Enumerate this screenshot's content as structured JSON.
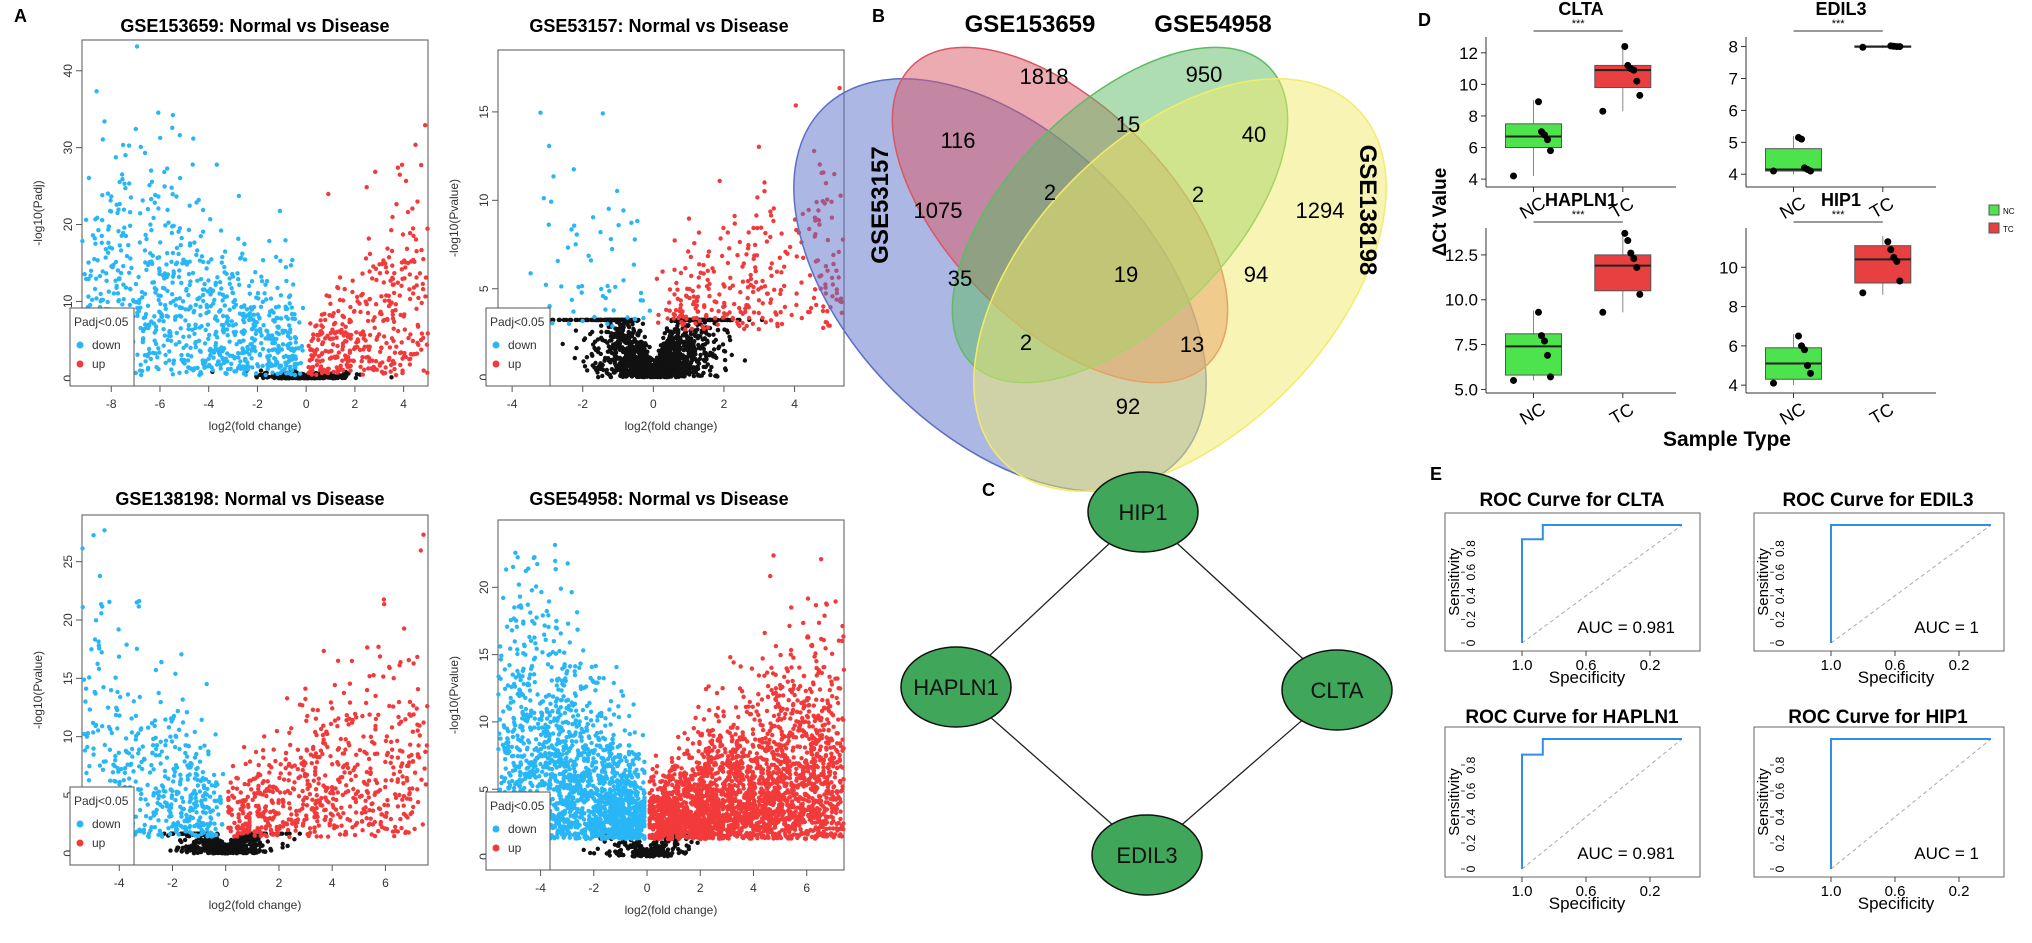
{
  "panels": {
    "A": "A",
    "B": "B",
    "C": "C",
    "D": "D",
    "E": "E"
  },
  "volcano_legend": {
    "title": "Padj<0.05",
    "down": "down",
    "up": "up"
  },
  "colors": {
    "down": "#29B6F6",
    "up": "#F23A3A",
    "ns": "#111111",
    "venn_red": "#D95763",
    "venn_green": "#5DBB63",
    "venn_yellow": "#F2EC6A",
    "venn_blue": "#5B6FC7",
    "box_nc": "#4DE34D",
    "box_tc": "#E84040",
    "node": "#3FA65A",
    "roc": "#2F8FE8"
  },
  "chart_data": [
    {
      "type": "scatter",
      "id": "v1",
      "title": "GSE153659: Normal vs Disease",
      "xlabel": "log2(fold change)",
      "ylabel": "-log10(Padj)",
      "xlim": [
        -9.2,
        5.0
      ],
      "ylim": [
        -1,
        44
      ],
      "xticks": [
        -8,
        -6,
        -4,
        -2,
        0,
        2,
        4
      ],
      "yticks": [
        0,
        10,
        20,
        30,
        40
      ],
      "legend": true
    },
    {
      "type": "scatter",
      "id": "v2",
      "title": "GSE53157: Normal vs Disease",
      "xlabel": "log2(fold change)",
      "ylabel": "-log10(Pvalue)",
      "xlim": [
        -4.4,
        5.4
      ],
      "ylim": [
        -0.5,
        18.5
      ],
      "xticks": [
        -4,
        -2,
        0,
        2,
        4
      ],
      "yticks": [
        0,
        5,
        10,
        15
      ],
      "legend": true
    },
    {
      "type": "scatter",
      "id": "v3",
      "title": "GSE138198: Normal vs Disease",
      "xlabel": "log2(fold change)",
      "ylabel": "-log10(Pvalue)",
      "xlim": [
        -5.4,
        7.6
      ],
      "ylim": [
        -1,
        29
      ],
      "xticks": [
        -4,
        -2,
        0,
        2,
        4,
        6
      ],
      "yticks": [
        0,
        5,
        10,
        15,
        20,
        25
      ],
      "legend": true
    },
    {
      "type": "scatter",
      "id": "v4",
      "title": "GSE54958: Normal vs Disease",
      "xlabel": "log2(fold change)",
      "ylabel": "-log10(Pvalue)",
      "xlim": [
        -5.6,
        7.4
      ],
      "ylim": [
        -1,
        25
      ],
      "xticks": [
        -4,
        -2,
        0,
        2,
        4,
        6
      ],
      "yticks": [
        0,
        5,
        10,
        15,
        20
      ],
      "legend": true
    }
  ],
  "venn": {
    "labels": {
      "top_left": "GSE153659",
      "top_right": "GSE54958",
      "left": "GSE53157",
      "right": "GSE138198"
    },
    "counts": [
      {
        "v": "1818",
        "pos": "a"
      },
      {
        "v": "950",
        "pos": "b"
      },
      {
        "v": "116",
        "pos": "c"
      },
      {
        "v": "15",
        "pos": "d"
      },
      {
        "v": "40",
        "pos": "e"
      },
      {
        "v": "1075",
        "pos": "f"
      },
      {
        "v": "2",
        "pos": "g"
      },
      {
        "v": "2",
        "pos": "h"
      },
      {
        "v": "1294",
        "pos": "i"
      },
      {
        "v": "35",
        "pos": "j"
      },
      {
        "v": "19",
        "pos": "k"
      },
      {
        "v": "94",
        "pos": "l"
      },
      {
        "v": "2",
        "pos": "m"
      },
      {
        "v": "13",
        "pos": "n"
      },
      {
        "v": "92",
        "pos": "o"
      }
    ]
  },
  "network": {
    "nodes": [
      {
        "id": "HIP1",
        "label": "HIP1"
      },
      {
        "id": "HAPLN1",
        "label": "HAPLN1"
      },
      {
        "id": "CLTA",
        "label": "CLTA"
      },
      {
        "id": "EDIL3",
        "label": "EDIL3"
      }
    ],
    "edges": [
      [
        "HIP1",
        "HAPLN1"
      ],
      [
        "HIP1",
        "CLTA"
      ],
      [
        "HAPLN1",
        "EDIL3"
      ],
      [
        "CLTA",
        "EDIL3"
      ]
    ]
  },
  "boxplots": {
    "ylabel": "ΔCt Value",
    "xlabel": "Sample Type",
    "sig": "***",
    "groups": [
      "NC",
      "TC"
    ],
    "legend": [
      "NC",
      "TC"
    ],
    "plots": [
      {
        "gene": "CLTA",
        "yticks": [
          "4",
          "6",
          "8",
          "10",
          "12"
        ],
        "ylim": [
          3.5,
          13
        ],
        "NC": {
          "q1": 6.0,
          "med": 6.7,
          "q3": 7.5,
          "lo": 4.2,
          "hi": 9.0,
          "pts": [
            4.2,
            5.8,
            6.5,
            6.8,
            7.0,
            8.9
          ]
        },
        "TC": {
          "q1": 9.8,
          "med": 10.9,
          "q3": 11.2,
          "lo": 8.3,
          "hi": 12.6,
          "pts": [
            8.3,
            9.3,
            10.2,
            10.9,
            11.0,
            11.2,
            12.4
          ]
        }
      },
      {
        "gene": "EDIL3",
        "yticks": [
          "4",
          "5",
          "6",
          "7",
          "8"
        ],
        "ylim": [
          3.6,
          8.3
        ],
        "NC": {
          "q1": 4.1,
          "med": 4.15,
          "q3": 4.8,
          "lo": 4.0,
          "hi": 5.2,
          "pts": [
            4.1,
            4.1,
            4.15,
            4.2,
            5.1,
            5.15
          ]
        },
        "TC": {
          "q1": 7.98,
          "med": 8.0,
          "q3": 8.02,
          "lo": 7.95,
          "hi": 8.05,
          "pts": [
            7.98,
            8.0,
            8.0,
            8.01,
            8.02
          ]
        }
      },
      {
        "gene": "HAPLN1",
        "yticks": [
          "5.0",
          "7.5",
          "10.0",
          "12.5"
        ],
        "ylim": [
          4.8,
          14
        ],
        "NC": {
          "q1": 5.8,
          "med": 7.4,
          "q3": 8.1,
          "lo": 5.5,
          "hi": 9.4,
          "pts": [
            5.5,
            5.7,
            6.9,
            7.7,
            8.0,
            9.3
          ]
        },
        "TC": {
          "q1": 10.5,
          "med": 11.9,
          "q3": 12.5,
          "lo": 9.3,
          "hi": 13.8,
          "pts": [
            9.3,
            10.3,
            11.8,
            12.3,
            12.6,
            13.3,
            13.7
          ]
        }
      },
      {
        "gene": "HIP1",
        "yticks": [
          "4",
          "6",
          "8",
          "10"
        ],
        "ylim": [
          3.6,
          12
        ],
        "NC": {
          "q1": 4.3,
          "med": 5.1,
          "q3": 5.9,
          "lo": 4.0,
          "hi": 6.6,
          "pts": [
            4.1,
            4.6,
            5.0,
            5.8,
            6.0,
            6.5
          ]
        },
        "TC": {
          "q1": 9.2,
          "med": 10.4,
          "q3": 11.1,
          "lo": 8.6,
          "hi": 11.6,
          "pts": [
            8.7,
            9.3,
            10.3,
            10.5,
            10.9,
            11.3
          ]
        }
      }
    ]
  },
  "roc": {
    "ylabel": "Sensitivity",
    "xlabel": "Specificity",
    "xticks": [
      "1.0",
      "0.6",
      "0.2"
    ],
    "yticks": [
      "0",
      "0.2",
      "0.4",
      "0.6",
      "0.8"
    ],
    "plots": [
      {
        "title": "ROC Curve for CLTA",
        "auc": "AUC = 0.981",
        "curve": [
          [
            1,
            0
          ],
          [
            1,
            0.88
          ],
          [
            0.87,
            0.88
          ],
          [
            0.87,
            1
          ],
          [
            0,
            1
          ]
        ]
      },
      {
        "title": "ROC Curve for EDIL3",
        "auc": "AUC = 1",
        "curve": [
          [
            1,
            0
          ],
          [
            1,
            1
          ],
          [
            0,
            1
          ]
        ]
      },
      {
        "title": "ROC Curve for HAPLN1",
        "auc": "AUC = 0.981",
        "curve": [
          [
            1,
            0
          ],
          [
            1,
            0.88
          ],
          [
            0.87,
            0.88
          ],
          [
            0.87,
            1
          ],
          [
            0,
            1
          ]
        ]
      },
      {
        "title": "ROC Curve for HIP1",
        "auc": "AUC = 1",
        "curve": [
          [
            1,
            0
          ],
          [
            1,
            1
          ],
          [
            0,
            1
          ]
        ]
      }
    ]
  }
}
